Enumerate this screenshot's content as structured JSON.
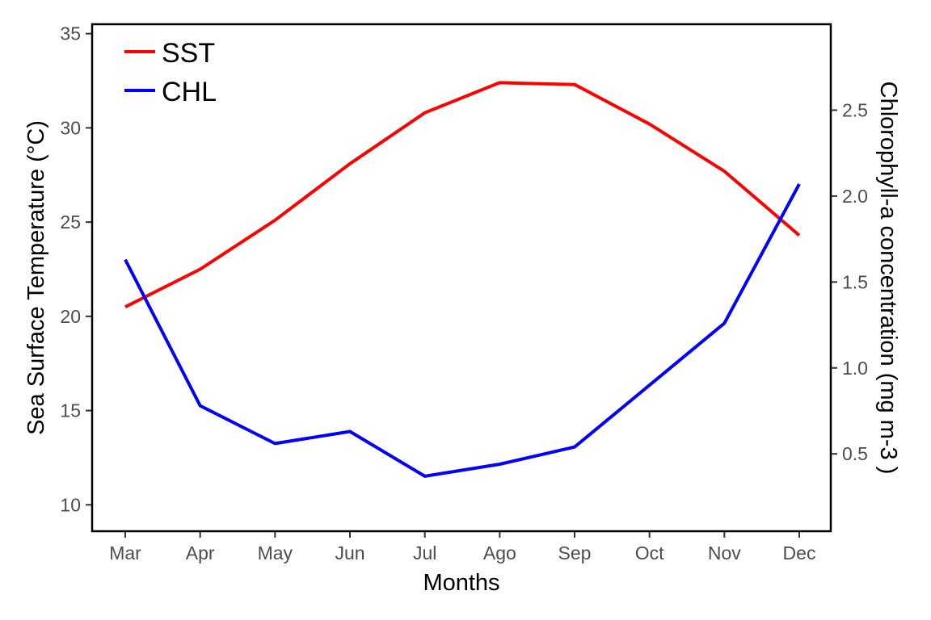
{
  "chart_data": {
    "type": "line",
    "title": "",
    "xlabel": "Months",
    "ylabel": "Sea Surface Temperature (°C)",
    "y2label": "Chlorophyll-a concentration (mg m-3 )",
    "categories": [
      "Mar",
      "Apr",
      "May",
      "Jun",
      "Jul",
      "Ago",
      "Sep",
      "Oct",
      "Nov",
      "Dec"
    ],
    "ylim": [
      8.6,
      35.5
    ],
    "yticks": [
      "10",
      "15",
      "20",
      "25",
      "30",
      "35"
    ],
    "y2lim": [
      0.05,
      3.0
    ],
    "y2ticks": [
      "0.5",
      "1.0",
      "1.5",
      "2.0",
      "2.5"
    ],
    "legend_position": "top-left",
    "grid": false,
    "series": [
      {
        "name": "SST",
        "axis": "left",
        "color": "#ff0000",
        "values": [
          20.5,
          22.5,
          25.1,
          28.1,
          30.8,
          32.4,
          32.3,
          30.2,
          27.7,
          24.3
        ]
      },
      {
        "name": "CHL",
        "axis": "right",
        "color": "#0000ff",
        "values": [
          1.63,
          0.78,
          0.56,
          0.63,
          0.37,
          0.44,
          0.54,
          0.9,
          1.26,
          2.07
        ]
      }
    ]
  }
}
